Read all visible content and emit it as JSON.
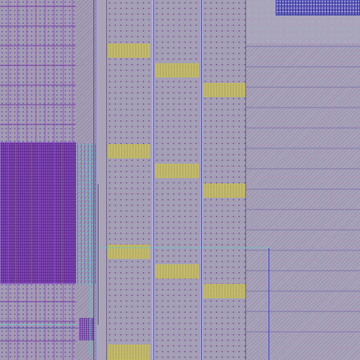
{
  "view": {
    "description_kind": "ic-layout-zoom",
    "palette": {
      "substrate": "#a79fb6",
      "metal_violet": "#6c3f9c",
      "via_blue": "#8fb1c0",
      "pad_yellow": "#b5ad6e",
      "wire_blue": "#3b3fa8",
      "wire_cyan": "#5fc8c8"
    }
  }
}
